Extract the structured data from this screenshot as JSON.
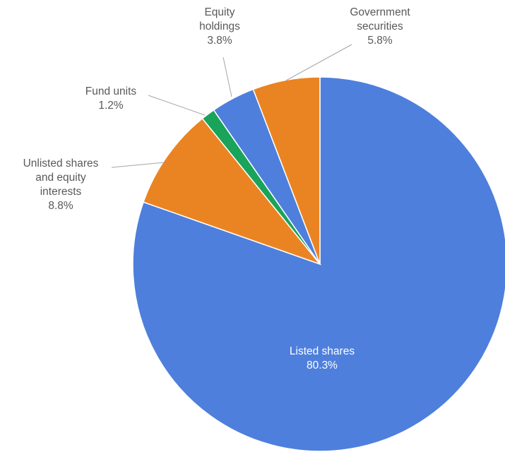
{
  "chart_data": {
    "type": "pie",
    "start_angle_deg": 0,
    "direction": "clockwise",
    "slices": [
      {
        "label_lines": [
          "Listed shares"
        ],
        "value": 80.3,
        "value_label": "80.3%",
        "color": "#4e7fdc"
      },
      {
        "label_lines": [
          "Unlisted shares",
          "and equity",
          "interests"
        ],
        "value": 8.8,
        "value_label": "8.8%",
        "color": "#ea8422"
      },
      {
        "label_lines": [
          "Fund units"
        ],
        "value": 1.2,
        "value_label": "1.2%",
        "color": "#1aa35a"
      },
      {
        "label_lines": [
          "Equity",
          "holdings"
        ],
        "value": 3.8,
        "value_label": "3.8%",
        "color": "#4e7fdc"
      },
      {
        "label_lines": [
          "Government",
          "securities"
        ],
        "value": 5.8,
        "value_label": "5.8%",
        "color": "#ea8422"
      }
    ]
  }
}
